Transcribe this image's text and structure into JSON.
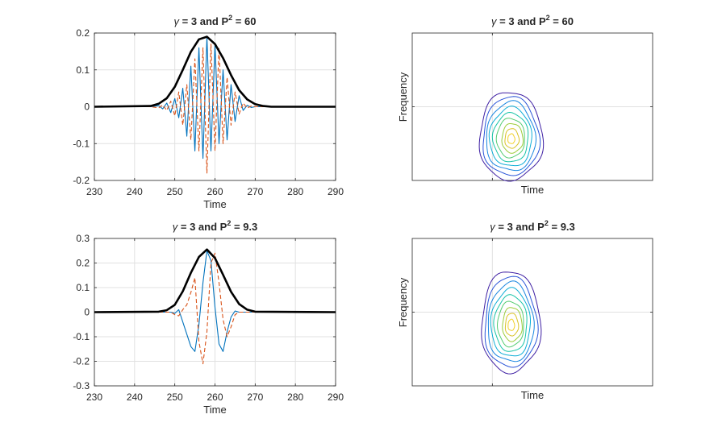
{
  "figure": {
    "background": "#ffffff",
    "colors": {
      "signal_real": "#0072BD",
      "signal_imag": "#D95319",
      "envelope": "#000000",
      "grid": "#e1e1e1",
      "axes": "#262626",
      "contour_colormap": [
        "#3e1fa3",
        "#2b55d8",
        "#1a86e0",
        "#0faed6",
        "#19c4a8",
        "#55cc72",
        "#9ccc3b",
        "#d9c328",
        "#f2d12a",
        "#f9fb0e"
      ]
    }
  },
  "chart_data": [
    {
      "type": "line",
      "panel": "time-signal-top",
      "title": "γ = 3 and P² = 60",
      "title_parts": {
        "gamma_sym": "γ",
        "gamma_val": "3",
        "and": "and",
        "p": "P",
        "sup": "2",
        "p_val": "60"
      },
      "xlabel": "Time",
      "ylabel": "",
      "xlim": [
        230,
        290
      ],
      "ylim": [
        -0.2,
        0.2
      ],
      "xticks": [
        230,
        240,
        250,
        260,
        270,
        280,
        290
      ],
      "xtick_labels": [
        "230",
        "240",
        "250",
        "260",
        "270",
        "280",
        "290"
      ],
      "yticks": [
        -0.2,
        -0.1,
        0,
        0.1,
        0.2
      ],
      "ytick_labels": [
        "-0.2",
        "-0.1",
        "0",
        "0.1",
        "0.2"
      ],
      "grid": true,
      "series": [
        {
          "role": "real",
          "style": "solid",
          "x": [
            230,
            244,
            246,
            247,
            248,
            249,
            250,
            251,
            252,
            253,
            254,
            255,
            256,
            257,
            258,
            259,
            260,
            261,
            262,
            263,
            264,
            265,
            266,
            267,
            268,
            269,
            270,
            272,
            290
          ],
          "y": [
            0,
            0,
            0.003,
            -0.006,
            0.01,
            -0.016,
            0.022,
            -0.03,
            0.05,
            -0.08,
            0.11,
            -0.12,
            0.16,
            -0.14,
            0.19,
            -0.12,
            0.17,
            -0.1,
            0.1,
            -0.09,
            0.06,
            -0.04,
            0.03,
            -0.01,
            0.004,
            -0.002,
            0,
            0,
            0
          ]
        },
        {
          "role": "imag",
          "style": "dashed",
          "x": [
            230,
            244,
            246,
            247,
            248,
            249,
            250,
            251,
            252,
            253,
            254,
            255,
            256,
            257,
            258,
            259,
            260,
            261,
            262,
            263,
            264,
            265,
            266,
            267,
            268,
            269,
            270,
            272,
            290
          ],
          "y": [
            0,
            0,
            -0.003,
            0.005,
            -0.01,
            0.015,
            -0.025,
            0.04,
            -0.05,
            0.06,
            -0.09,
            0.13,
            -0.12,
            0.16,
            -0.18,
            0.17,
            -0.12,
            0.16,
            -0.1,
            0.08,
            -0.05,
            0.04,
            -0.02,
            0.01,
            -0.004,
            0.002,
            0,
            0,
            0
          ]
        },
        {
          "role": "envelope",
          "style": "solid-thick",
          "x": [
            230,
            244,
            246,
            248,
            250,
            252,
            254,
            256,
            258,
            260,
            262,
            264,
            266,
            268,
            270,
            272,
            274,
            290
          ],
          "y": [
            0,
            0.002,
            0.008,
            0.023,
            0.054,
            0.1,
            0.149,
            0.183,
            0.19,
            0.17,
            0.132,
            0.086,
            0.045,
            0.02,
            0.007,
            0.002,
            0,
            0
          ]
        }
      ]
    },
    {
      "type": "contour",
      "panel": "tf-top",
      "title": "γ = 3 and P² = 60",
      "title_parts": {
        "gamma_sym": "γ",
        "gamma_val": "3",
        "and": "and",
        "p": "P",
        "sup": "2",
        "p_val": "60"
      },
      "xlabel": "Time",
      "ylabel": "Frequency",
      "grid": true,
      "center": [
        0.41,
        0.72
      ],
      "radii": [
        0.215,
        0.3
      ],
      "levels": 9
    },
    {
      "type": "line",
      "panel": "time-signal-bottom",
      "title": "γ = 3 and P² = 9.3",
      "title_parts": {
        "gamma_sym": "γ",
        "gamma_val": "3",
        "and": "and",
        "p": "P",
        "sup": "2",
        "p_val": "9.3"
      },
      "xlabel": "Time",
      "ylabel": "",
      "xlim": [
        230,
        290
      ],
      "ylim": [
        -0.3,
        0.3
      ],
      "xticks": [
        230,
        240,
        250,
        260,
        270,
        280,
        290
      ],
      "xtick_labels": [
        "230",
        "240",
        "250",
        "260",
        "270",
        "280",
        "290"
      ],
      "yticks": [
        -0.3,
        -0.2,
        -0.1,
        0,
        0.1,
        0.2,
        0.3
      ],
      "ytick_labels": [
        "-0.3",
        "-0.2",
        "-0.1",
        "0",
        "0.1",
        "0.2",
        "0.3"
      ],
      "grid": true,
      "series": [
        {
          "role": "real",
          "style": "solid",
          "x": [
            230,
            247,
            249,
            250,
            251,
            252,
            253,
            254,
            255,
            256,
            257,
            258,
            259,
            260,
            261,
            262,
            263,
            264,
            265,
            266,
            267,
            268,
            290
          ],
          "y": [
            0,
            0,
            0,
            -0.005,
            0.01,
            -0.04,
            -0.09,
            -0.14,
            -0.16,
            -0.05,
            0.12,
            0.25,
            0.21,
            0.02,
            -0.13,
            -0.16,
            -0.08,
            -0.02,
            0.005,
            0,
            0,
            0,
            0
          ]
        },
        {
          "role": "imag",
          "style": "dashed",
          "x": [
            230,
            249,
            250,
            251,
            252,
            253,
            254,
            255,
            256,
            257,
            258,
            259,
            260,
            261,
            262,
            263,
            264,
            265,
            266,
            267,
            290
          ],
          "y": [
            0,
            0,
            -0.01,
            -0.015,
            0.01,
            0.03,
            0.08,
            0.14,
            -0.12,
            -0.21,
            -0.08,
            0.2,
            0.24,
            0.12,
            -0.03,
            -0.1,
            -0.06,
            -0.01,
            0,
            0,
            0
          ]
        },
        {
          "role": "envelope",
          "style": "solid-thick",
          "x": [
            230,
            246,
            248,
            250,
            252,
            254,
            256,
            258,
            260,
            262,
            264,
            266,
            268,
            270,
            290
          ],
          "y": [
            0,
            0.002,
            0.008,
            0.03,
            0.085,
            0.16,
            0.225,
            0.255,
            0.22,
            0.152,
            0.083,
            0.033,
            0.01,
            0.002,
            0
          ]
        }
      ]
    },
    {
      "type": "contour",
      "panel": "tf-bottom",
      "title": "γ = 3 and P² = 9.3",
      "title_parts": {
        "gamma_sym": "γ",
        "gamma_val": "3",
        "and": "and",
        "p": "P",
        "sup": "2",
        "p_val": "9.3"
      },
      "xlabel": "Time",
      "ylabel": "Frequency",
      "grid": true,
      "center": [
        0.41,
        0.59
      ],
      "radii": [
        0.2,
        0.345
      ],
      "levels": 9
    }
  ]
}
